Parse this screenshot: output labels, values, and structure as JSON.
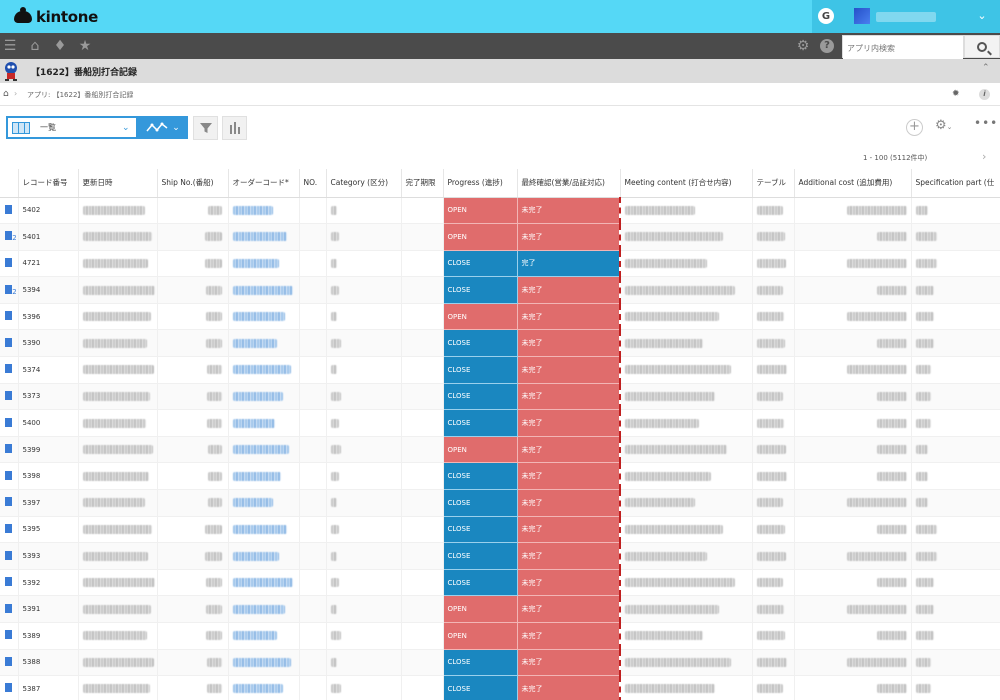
{
  "header": {
    "logo_text": "kintone",
    "google_label": "G"
  },
  "navbar": {
    "search_placeholder": "アプリ内検索"
  },
  "app": {
    "title": "【1622】番船別打合記録"
  },
  "breadcrumb": {
    "text": "アプリ: 【1622】番船別打合記録"
  },
  "toolbar": {
    "view_label": "一覧"
  },
  "pager": {
    "text": "1 - 100 (5112件中)"
  },
  "table": {
    "columns": [
      "レコード番号",
      "更新日時",
      "Ship No.(番船)",
      "オーダーコード*",
      "NO.",
      "Category (区分)",
      "完了期限",
      "Progress (進捗)",
      "最終確認(営業/品証対応)",
      "Meeting content (打合せ内容)",
      "テーブル",
      "Additional cost (追加費用)",
      "Specification part (仕"
    ],
    "rows": [
      {
        "id": "5402",
        "multi": false,
        "progress": "OPEN",
        "final": "未完了"
      },
      {
        "id": "5401",
        "multi": true,
        "progress": "OPEN",
        "final": "未完了"
      },
      {
        "id": "4721",
        "multi": false,
        "progress": "CLOSE",
        "final": "完了"
      },
      {
        "id": "5394",
        "multi": true,
        "progress": "CLOSE",
        "final": "未完了"
      },
      {
        "id": "5396",
        "multi": false,
        "progress": "OPEN",
        "final": "未完了"
      },
      {
        "id": "5390",
        "multi": false,
        "progress": "CLOSE",
        "final": "未完了"
      },
      {
        "id": "5374",
        "multi": false,
        "progress": "CLOSE",
        "final": "未完了"
      },
      {
        "id": "5373",
        "multi": false,
        "progress": "CLOSE",
        "final": "未完了"
      },
      {
        "id": "5400",
        "multi": false,
        "progress": "CLOSE",
        "final": "未完了"
      },
      {
        "id": "5399",
        "multi": false,
        "progress": "OPEN",
        "final": "未完了"
      },
      {
        "id": "5398",
        "multi": false,
        "progress": "CLOSE",
        "final": "未完了"
      },
      {
        "id": "5397",
        "multi": false,
        "progress": "CLOSE",
        "final": "未完了"
      },
      {
        "id": "5395",
        "multi": false,
        "progress": "CLOSE",
        "final": "未完了"
      },
      {
        "id": "5393",
        "multi": false,
        "progress": "CLOSE",
        "final": "未完了"
      },
      {
        "id": "5392",
        "multi": false,
        "progress": "CLOSE",
        "final": "未完了"
      },
      {
        "id": "5391",
        "multi": false,
        "progress": "OPEN",
        "final": "未完了"
      },
      {
        "id": "5389",
        "multi": false,
        "progress": "OPEN",
        "final": "未完了"
      },
      {
        "id": "5388",
        "multi": false,
        "progress": "CLOSE",
        "final": "未完了"
      },
      {
        "id": "5387",
        "multi": false,
        "progress": "CLOSE",
        "final": "未完了"
      }
    ]
  },
  "colors": {
    "header_bg": "#55d8f6",
    "nav_bg": "#4b4b4b",
    "open": "#e06c6c",
    "close": "#1a87c0",
    "accent": "#3498db"
  },
  "icons": {
    "menu": "hamburger-icon",
    "home": "home-icon",
    "bell": "bell-icon",
    "star": "star-icon",
    "settings": "gear-icon",
    "help": "help-icon",
    "search": "search-icon"
  }
}
